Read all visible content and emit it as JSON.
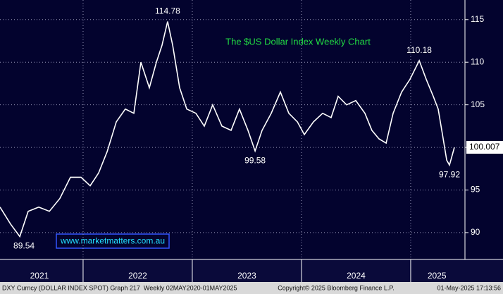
{
  "chart_data": {
    "type": "line",
    "title": "The $US Dollar Index Weekly Chart",
    "watermark": "www.marketmatters.com.au",
    "footer_left": "DXY Curncy (DOLLAR INDEX SPOT) Graph 217  Weekly 02MAY2020-01MAY2025",
    "footer_center": "Copyright© 2025 Bloomberg Finance L.P.",
    "footer_right": "01-May-2025 17:13:56",
    "color": "#ffffff",
    "x": [
      2021.239,
      2021.336,
      2021.42,
      2021.497,
      2021.594,
      2021.691,
      2021.787,
      2021.884,
      2021.981,
      2022.065,
      2022.142,
      2022.22,
      2022.304,
      2022.387,
      2022.465,
      2022.529,
      2022.607,
      2022.671,
      2022.723,
      2022.774,
      2022.82,
      2022.884,
      2022.949,
      2023.033,
      2023.11,
      2023.187,
      2023.271,
      2023.355,
      2023.432,
      2023.51,
      2023.575,
      2023.639,
      2023.723,
      2023.807,
      2023.884,
      2023.962,
      2024.026,
      2024.11,
      2024.194,
      2024.271,
      2024.336,
      2024.413,
      2024.497,
      2024.581,
      2024.645,
      2024.71,
      2024.775,
      2024.839,
      2024.917,
      2024.994,
      2025.078,
      2025.142,
      2025.207,
      2025.252,
      2025.291,
      2025.33,
      2025.355,
      2025.4
    ],
    "values": [
      93,
      91,
      89.54,
      92.5,
      93,
      92.5,
      94,
      96.5,
      96.5,
      95.5,
      97,
      99.5,
      103,
      104.5,
      104,
      110,
      107,
      110,
      112,
      114.78,
      112,
      107,
      104.5,
      104,
      102.5,
      105,
      102.5,
      102,
      104.5,
      102,
      99.58,
      102,
      104,
      106.5,
      104,
      103,
      101.5,
      103,
      104,
      103.5,
      106,
      105,
      105.5,
      104,
      102,
      101,
      100.5,
      104,
      106.5,
      108,
      110.18,
      108,
      106,
      104.5,
      101.5,
      98.5,
      97.92,
      100.007
    ],
    "annotations": [
      {
        "x": 2022.774,
        "value": 114.78
      },
      {
        "x": 2023.575,
        "value": 99.58
      },
      {
        "x": 2021.42,
        "value": 89.54
      },
      {
        "x": 2025.078,
        "value": 110.18
      },
      {
        "x": 2025.355,
        "value": 97.92
      }
    ],
    "last_value": 100.007,
    "xlim": [
      2021.239,
      2025.497
    ],
    "xticks": [
      {
        "value": 2021.6,
        "label": "2021"
      },
      {
        "value": 2022.5,
        "label": "2022"
      },
      {
        "value": 2023.5,
        "label": "2023"
      },
      {
        "value": 2024.5,
        "label": "2024"
      },
      {
        "value": 2025.24,
        "label": "2025"
      }
    ],
    "xgrid": [
      2022,
      2023,
      2024,
      2025
    ],
    "ylim": [
      86.85,
      117.3
    ],
    "yticks": [
      90,
      95,
      100,
      105,
      110,
      115
    ],
    "grid": true
  }
}
